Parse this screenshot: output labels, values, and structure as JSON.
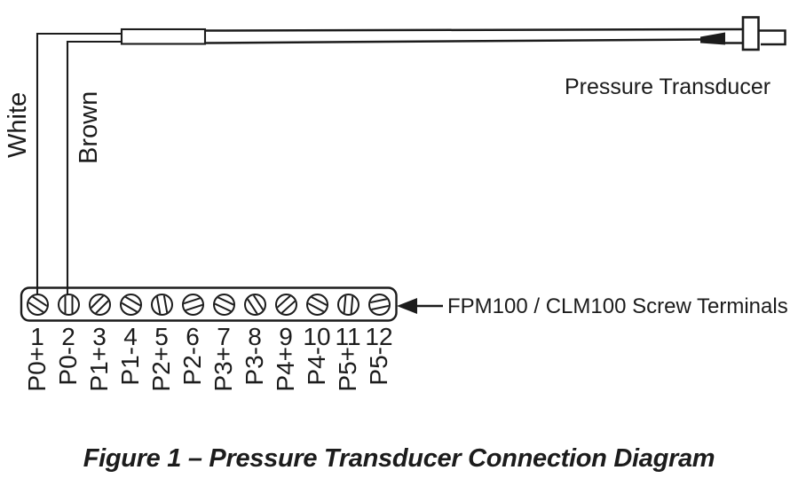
{
  "colors": {
    "ink": "#1c1c1c",
    "background": "#ffffff"
  },
  "transducer": {
    "label": "Pressure Transducer"
  },
  "wires": [
    {
      "name": "white",
      "label": "White",
      "connects_to_terminal": "1"
    },
    {
      "name": "brown",
      "label": "Brown",
      "connects_to_terminal": "2"
    }
  ],
  "terminal_strip": {
    "pointer_label": "FPM100 / CLM100 Screw Terminals",
    "terminals": [
      {
        "number": "1",
        "label": "P0+",
        "slot_angle": 33
      },
      {
        "number": "2",
        "label": "P0-",
        "slot_angle": 90
      },
      {
        "number": "3",
        "label": "P1+",
        "slot_angle": -45
      },
      {
        "number": "4",
        "label": "P1-",
        "slot_angle": 30
      },
      {
        "number": "5",
        "label": "P2+",
        "slot_angle": 80
      },
      {
        "number": "6",
        "label": "P2-",
        "slot_angle": -18
      },
      {
        "number": "7",
        "label": "P3+",
        "slot_angle": 25
      },
      {
        "number": "8",
        "label": "P3-",
        "slot_angle": 57
      },
      {
        "number": "9",
        "label": "P4+",
        "slot_angle": -42
      },
      {
        "number": "10",
        "label": "P4-",
        "slot_angle": 28
      },
      {
        "number": "11",
        "label": "P5+",
        "slot_angle": 95
      },
      {
        "number": "12",
        "label": "P5-",
        "slot_angle": -12
      }
    ]
  },
  "caption": "Figure 1 – Pressure Transducer Connection Diagram"
}
